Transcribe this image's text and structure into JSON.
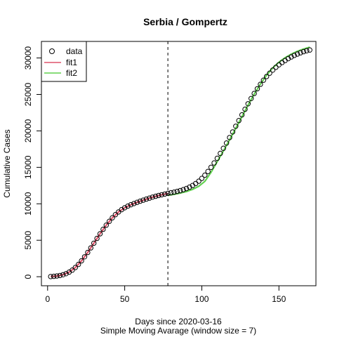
{
  "chart_data": {
    "type": "scatter",
    "title": "Serbia / Gompertz",
    "xlabel": "Days since 2020-03-16",
    "subtitle": "Simple Moving Avarage (window size = 7)",
    "ylabel": "Cumulative Cases",
    "xlim": [
      -4,
      174
    ],
    "ylim": [
      -1240,
      32270
    ],
    "x_ticks": [
      0,
      50,
      100,
      150
    ],
    "y_ticks": [
      0,
      5000,
      10000,
      15000,
      20000,
      25000,
      30000
    ],
    "x_tick_labels": [
      "0",
      "50",
      "100",
      "150"
    ],
    "y_tick_labels": [
      "0",
      "5000",
      "10000",
      "15000",
      "20000",
      "25000",
      "30000"
    ],
    "vline_x": 78,
    "grid": false,
    "legend_position": "top-left",
    "series": [
      {
        "name": "data",
        "kind": "points",
        "color": "#000000",
        "x": [
          2,
          4,
          6,
          8,
          10,
          12,
          14,
          16,
          18,
          20,
          22,
          24,
          26,
          28,
          30,
          32,
          34,
          36,
          38,
          40,
          42,
          44,
          46,
          48,
          50,
          52,
          54,
          56,
          58,
          60,
          62,
          64,
          66,
          68,
          70,
          72,
          74,
          76,
          78,
          80,
          82,
          84,
          86,
          88,
          90,
          92,
          94,
          96,
          98,
          100,
          102,
          104,
          106,
          108,
          110,
          112,
          114,
          116,
          118,
          120,
          122,
          124,
          126,
          128,
          130,
          132,
          134,
          136,
          138,
          140,
          142,
          144,
          146,
          148,
          150,
          152,
          154,
          156,
          158,
          160,
          162,
          164,
          166,
          168,
          170
        ],
        "y": [
          20,
          50,
          100,
          170,
          270,
          420,
          630,
          910,
          1260,
          1690,
          2180,
          2730,
          3320,
          3950,
          4600,
          5250,
          5890,
          6500,
          7070,
          7600,
          8080,
          8510,
          8880,
          9200,
          9460,
          9680,
          9870,
          10040,
          10200,
          10350,
          10500,
          10640,
          10780,
          10910,
          11030,
          11140,
          11240,
          11340,
          11430,
          11520,
          11600,
          11700,
          11810,
          11940,
          12100,
          12290,
          12510,
          12780,
          13100,
          13480,
          13930,
          14440,
          15000,
          15600,
          16240,
          16910,
          17610,
          18340,
          19090,
          19860,
          20640,
          21420,
          22200,
          22970,
          23720,
          24440,
          25130,
          25780,
          26390,
          26950,
          27460,
          27920,
          28340,
          28720,
          29060,
          29370,
          29650,
          29910,
          30140,
          30350,
          30540,
          30710,
          30860,
          30990,
          31100
        ]
      },
      {
        "name": "fit1",
        "kind": "line",
        "color": "#df536b",
        "x": [
          2,
          6,
          10,
          14,
          18,
          22,
          26,
          30,
          34,
          38,
          42,
          46,
          50,
          54,
          58,
          62,
          66,
          70,
          74,
          78
        ],
        "y": [
          20,
          100,
          270,
          630,
          1260,
          2180,
          3320,
          4600,
          5890,
          7070,
          8080,
          8880,
          9460,
          9870,
          10200,
          10500,
          10780,
          11030,
          11240,
          11430
        ]
      },
      {
        "name": "fit2",
        "kind": "line",
        "color": "#61d04f",
        "x": [
          78,
          82,
          86,
          90,
          94,
          98,
          102,
          106,
          110,
          114,
          118,
          122,
          126,
          130,
          134,
          138,
          142,
          146,
          150,
          154,
          158,
          162,
          166,
          170
        ],
        "y": [
          11150,
          11300,
          11460,
          11680,
          11980,
          12400,
          13080,
          14320,
          15780,
          17250,
          18780,
          20350,
          21950,
          23540,
          25050,
          26420,
          27640,
          28640,
          29420,
          30040,
          30530,
          30920,
          31230,
          31480
        ]
      }
    ]
  }
}
